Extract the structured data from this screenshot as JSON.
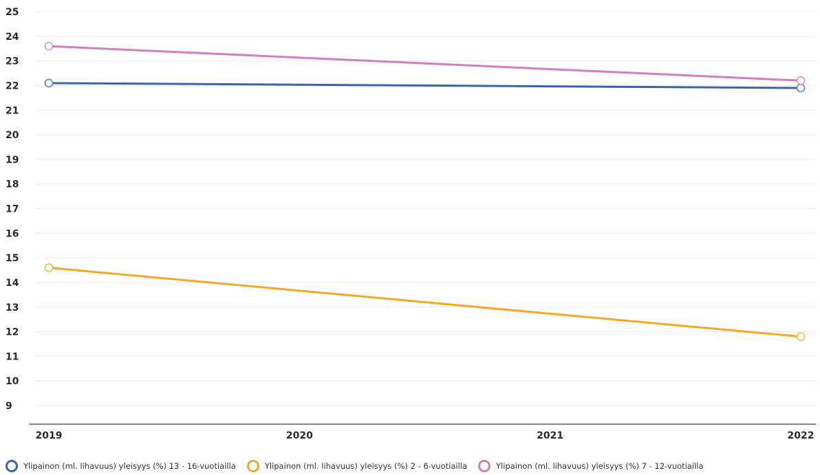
{
  "chart_data": {
    "type": "line",
    "title": "",
    "xlabel": "",
    "ylabel": "",
    "x": [
      "2019",
      "2020",
      "2021",
      "2022"
    ],
    "ylim": [
      9,
      25
    ],
    "yticks": [
      9,
      10,
      11,
      12,
      13,
      14,
      15,
      16,
      17,
      18,
      19,
      20,
      21,
      22,
      23,
      24,
      25
    ],
    "grid": true,
    "legend_position": "bottom",
    "series": [
      {
        "name": "Ylipainon (ml. lihavuus) yleisyys (%) 13 - 16-vuotiailla",
        "color": "#3c64ac",
        "points": [
          {
            "x": "2019",
            "y": 22.1
          },
          {
            "x": "2022",
            "y": 21.9
          }
        ]
      },
      {
        "name": "Ylipainon (ml. lihavuus) yleisyys (%) 2 - 6-vuotiailla",
        "color": "#f6a825",
        "points": [
          {
            "x": "2019",
            "y": 14.6
          },
          {
            "x": "2022",
            "y": 11.8
          }
        ]
      },
      {
        "name": "Ylipainon (ml. lihavuus) yleisyys (%) 7 - 12-vuotiailla",
        "color": "#cf7fbd",
        "points": [
          {
            "x": "2019",
            "y": 23.6
          },
          {
            "x": "2022",
            "y": 22.2
          }
        ]
      }
    ]
  },
  "legend": {
    "items": [
      {
        "label": "Ylipainon (ml. lihavuus) yleisyys (%) 13 - 16-vuotiailla",
        "color": "#3c64ac"
      },
      {
        "label": "Ylipainon (ml. lihavuus) yleisyys (%) 2 - 6-vuotiailla",
        "color": "#f6a825"
      },
      {
        "label": "Ylipainon (ml. lihavuus) yleisyys (%) 7 - 12-vuotiailla",
        "color": "#cf7fbd"
      }
    ]
  }
}
